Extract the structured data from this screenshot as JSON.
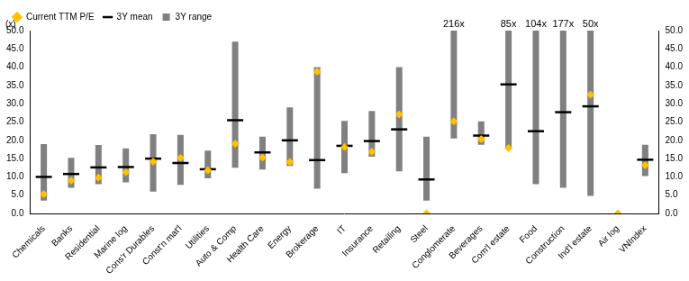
{
  "chart_data": {
    "type": "bar",
    "ylabel": "(x)",
    "categories": [
      "Chemicals",
      "Banks",
      "Residential",
      "Marine log",
      "Cons'r Durables",
      "Const'n mat'l",
      "Utilities",
      "Auto & Comp",
      "Health Care",
      "Energy",
      "Brokerage",
      "IT",
      "Insurance",
      "Retailing",
      "Steel",
      "Conglomerate",
      "Beverages",
      "Com'l estate",
      "Food",
      "Construction",
      "Ind'l estate",
      "Air log",
      "VNIndex"
    ],
    "series": [
      {
        "name": "3Y range",
        "type": "bar",
        "color": "#808080",
        "values": [
          [
            3.5,
            19
          ],
          [
            7,
            15.2
          ],
          [
            8,
            18.7
          ],
          [
            8.5,
            17.8
          ],
          [
            6,
            21.7
          ],
          [
            7.8,
            21.5
          ],
          [
            9.6,
            17.2
          ],
          [
            12.5,
            47
          ],
          [
            12,
            21
          ],
          [
            13,
            29
          ],
          [
            6.8,
            40
          ],
          [
            11,
            25.3
          ],
          [
            15.5,
            28
          ],
          [
            11.5,
            40
          ],
          [
            3.5,
            21
          ],
          [
            20.5,
            216
          ],
          [
            18.8,
            25.2
          ],
          [
            17.8,
            85
          ],
          [
            8,
            104
          ],
          [
            7,
            177
          ],
          [
            4.8,
            50
          ],
          null,
          [
            10.2,
            18.8
          ]
        ]
      },
      {
        "name": "3Y mean",
        "type": "scatter",
        "marker": "dash",
        "color": "#000000",
        "values": [
          10,
          10.8,
          12.6,
          12.7,
          15,
          13.8,
          12.1,
          25.5,
          16.7,
          20,
          14.6,
          18.5,
          19.8,
          23,
          9.3,
          null,
          21.3,
          35.3,
          22.5,
          27.7,
          29.3,
          null,
          14.7
        ]
      },
      {
        "name": "Current TTM P/E",
        "type": "scatter",
        "marker": "diamond",
        "color": "#FFC000",
        "values": [
          5.3,
          9,
          9.8,
          11.3,
          14.2,
          15.2,
          11.8,
          19.1,
          15.3,
          14.1,
          38.8,
          18.2,
          16.9,
          27.1,
          0,
          25.2,
          20.3,
          17.9,
          null,
          null,
          32.5,
          0,
          13.2
        ]
      }
    ],
    "annotations": [
      {
        "category": "Conglomerate",
        "text": "216x"
      },
      {
        "category": "Com'l estate",
        "text": "85x"
      },
      {
        "category": "Food",
        "text": "104x"
      },
      {
        "category": "Construction",
        "text": "177x"
      },
      {
        "category": "Ind'l estate",
        "text": "50x"
      }
    ],
    "ylim": [
      0,
      50
    ],
    "yticks": [
      {
        "value": 0,
        "label": "0.0"
      },
      {
        "value": 5,
        "label": "5.0"
      },
      {
        "value": 10,
        "label": "10.0"
      },
      {
        "value": 15,
        "label": "15.0"
      },
      {
        "value": 20,
        "label": "20.0"
      },
      {
        "value": 25,
        "label": "25.0"
      },
      {
        "value": 30,
        "label": "30.0"
      },
      {
        "value": 35,
        "label": "35.0"
      },
      {
        "value": 40,
        "label": "40.0"
      },
      {
        "value": 45,
        "label": "45.0"
      },
      {
        "value": 50,
        "label": "50.0"
      }
    ],
    "y2lim": [
      0,
      50
    ],
    "y2ticks": [
      {
        "value": 0,
        "label": "0.0"
      },
      {
        "value": 5,
        "label": "5.0"
      },
      {
        "value": 10,
        "label": "10.0"
      },
      {
        "value": 15,
        "label": "15.0"
      },
      {
        "value": 20,
        "label": "20.0"
      },
      {
        "value": 25,
        "label": "25.0"
      },
      {
        "value": 30,
        "label": "30.0"
      },
      {
        "value": 35,
        "label": "35.0"
      },
      {
        "value": 40,
        "label": "40.0"
      },
      {
        "value": 45,
        "label": "45.0"
      },
      {
        "value": 50,
        "label": "50.0"
      }
    ],
    "grid": false,
    "legend": "top"
  }
}
